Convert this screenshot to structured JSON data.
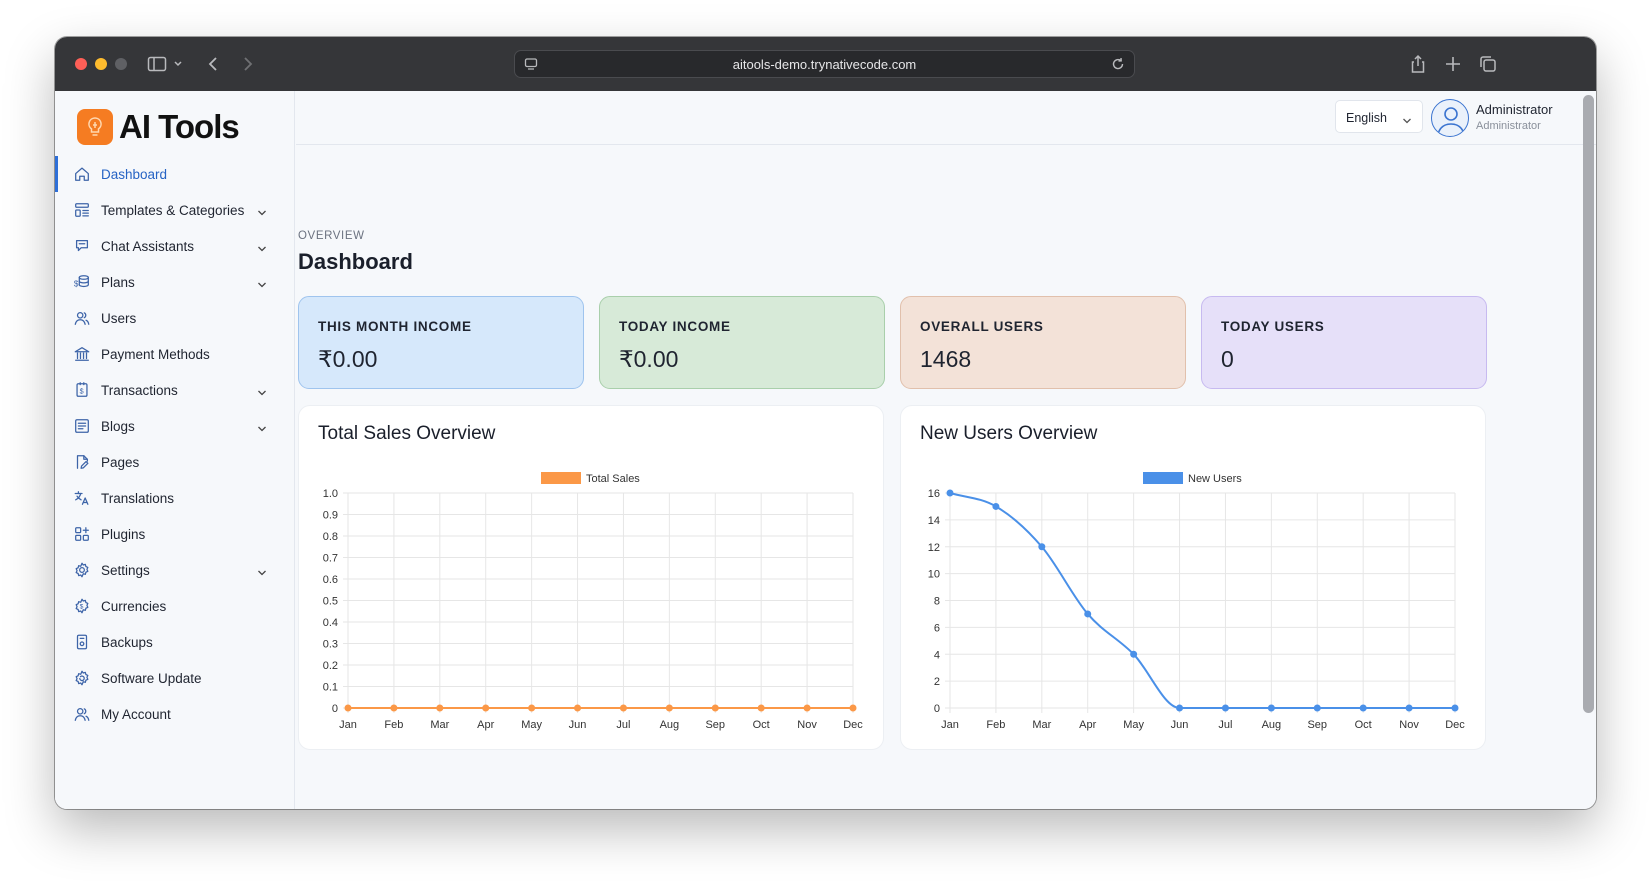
{
  "browser": {
    "url": "aitools-demo.trynativecode.com"
  },
  "app": {
    "logo_text": "AI Tools",
    "brand_color": "#f57c22"
  },
  "sidebar": {
    "items": [
      {
        "label": "Dashboard",
        "icon": "home-icon",
        "active": true,
        "expandable": false
      },
      {
        "label": "Templates & Categories",
        "icon": "templates-icon",
        "active": false,
        "expandable": true
      },
      {
        "label": "Chat Assistants",
        "icon": "chat-icon",
        "active": false,
        "expandable": true
      },
      {
        "label": "Plans",
        "icon": "plans-icon",
        "active": false,
        "expandable": true
      },
      {
        "label": "Users",
        "icon": "users-icon",
        "active": false,
        "expandable": false
      },
      {
        "label": "Payment Methods",
        "icon": "bank-icon",
        "active": false,
        "expandable": false
      },
      {
        "label": "Transactions",
        "icon": "receipt-icon",
        "active": false,
        "expandable": true
      },
      {
        "label": "Blogs",
        "icon": "blog-icon",
        "active": false,
        "expandable": true
      },
      {
        "label": "Pages",
        "icon": "pages-icon",
        "active": false,
        "expandable": false
      },
      {
        "label": "Translations",
        "icon": "translate-icon",
        "active": false,
        "expandable": false
      },
      {
        "label": "Plugins",
        "icon": "plugins-icon",
        "active": false,
        "expandable": false
      },
      {
        "label": "Settings",
        "icon": "gear-icon",
        "active": false,
        "expandable": true
      },
      {
        "label": "Currencies",
        "icon": "currency-icon",
        "active": false,
        "expandable": false
      },
      {
        "label": "Backups",
        "icon": "backup-icon",
        "active": false,
        "expandable": false
      },
      {
        "label": "Software Update",
        "icon": "update-icon",
        "active": false,
        "expandable": false
      },
      {
        "label": "My Account",
        "icon": "account-icon",
        "active": false,
        "expandable": false
      }
    ]
  },
  "header": {
    "language": "English",
    "user_name": "Administrator",
    "user_role": "Administrator"
  },
  "main": {
    "eyebrow": "OVERVIEW",
    "title": "Dashboard",
    "stats": [
      {
        "label": "THIS MONTH INCOME",
        "value": "₹0.00",
        "bg": "#d6e8fb",
        "border": "#9fc4ee"
      },
      {
        "label": "TODAY INCOME",
        "value": "₹0.00",
        "bg": "#d7ead8",
        "border": "#a9cfab"
      },
      {
        "label": "OVERALL USERS",
        "value": "1468",
        "bg": "#f3e2d8",
        "border": "#e1c0ac"
      },
      {
        "label": "TODAY USERS",
        "value": "0",
        "bg": "#e6e0f9",
        "border": "#c7baf0"
      }
    ],
    "sales_card_title": "Total Sales Overview",
    "users_card_title": "New Users Overview"
  },
  "chart_data": [
    {
      "type": "line",
      "title": "Total Sales Overview",
      "categories": [
        "Jan",
        "Feb",
        "Mar",
        "Apr",
        "May",
        "Jun",
        "Jul",
        "Aug",
        "Sep",
        "Oct",
        "Nov",
        "Dec"
      ],
      "series": [
        {
          "name": "Total Sales",
          "values": [
            0,
            0,
            0,
            0,
            0,
            0,
            0,
            0,
            0,
            0,
            0,
            0
          ],
          "color": "#fb9847"
        }
      ],
      "yticks": [
        "0",
        "0.1",
        "0.2",
        "0.3",
        "0.4",
        "0.5",
        "0.6",
        "0.7",
        "0.8",
        "0.9",
        "1.0"
      ],
      "ylim": [
        0,
        1
      ],
      "grid": true,
      "legend": "top-center",
      "smooth": false
    },
    {
      "type": "line",
      "title": "New Users Overview",
      "categories": [
        "Jan",
        "Feb",
        "Mar",
        "Apr",
        "May",
        "Jun",
        "Jul",
        "Aug",
        "Sep",
        "Oct",
        "Nov",
        "Dec"
      ],
      "series": [
        {
          "name": "New Users",
          "values": [
            16,
            15,
            12,
            7,
            4,
            0,
            0,
            0,
            0,
            0,
            0,
            0
          ],
          "color": "#4a90e8"
        }
      ],
      "yticks": [
        "0",
        "2",
        "4",
        "6",
        "8",
        "10",
        "12",
        "14",
        "16"
      ],
      "ylim": [
        0,
        16
      ],
      "grid": true,
      "legend": "top-center",
      "smooth": true
    }
  ]
}
